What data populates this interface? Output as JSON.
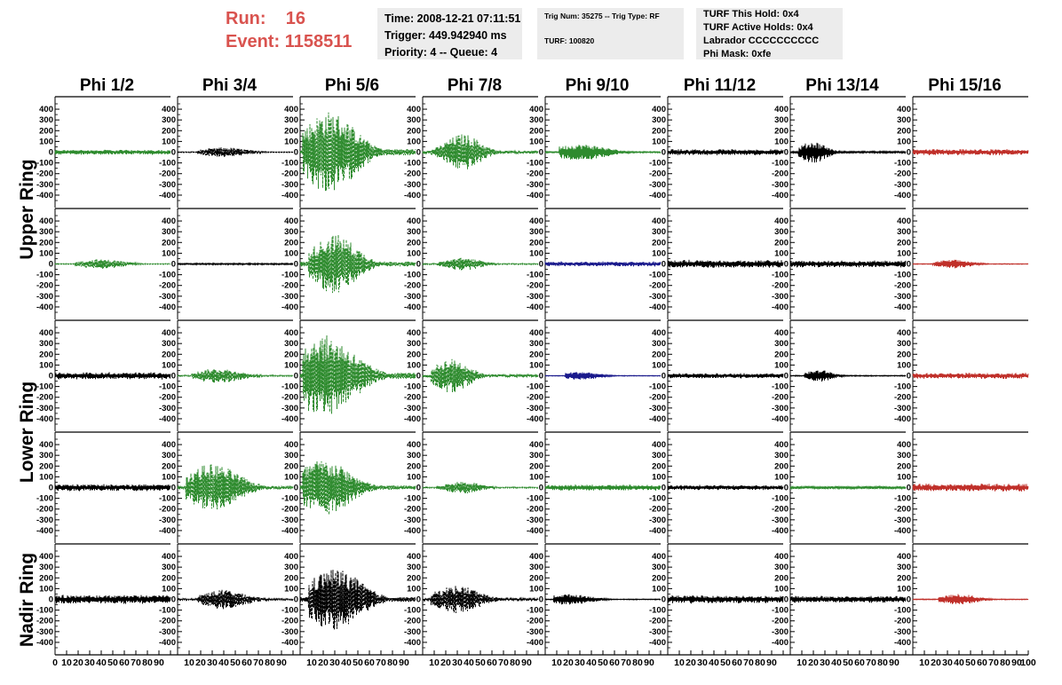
{
  "header": {
    "run_label": "Run:",
    "run_value": "16",
    "event_label": "Event:",
    "event_value": "1158511"
  },
  "info_time": {
    "time": "Time: 2008-12-21 07:11:51",
    "trigger": "Trigger: 449.942940 ms",
    "priority": "Priority: 4 -- Queue: 4"
  },
  "info_trig": {
    "trig": "Trig Num: 35275 -- Trig Type: RF",
    "turf": "TURF: 100820"
  },
  "info_turf": {
    "hold": "TURF This Hold: 0x4",
    "active": "TURF Active Holds: 0x4",
    "labrador": "Labrador CCCCCCCCCC",
    "phimask": "Phi Mask: 0xfe"
  },
  "columns": [
    "Phi 1/2",
    "Phi 3/4",
    "Phi 5/6",
    "Phi 7/8",
    "Phi 9/10",
    "Phi 11/12",
    "Phi 13/14",
    "Phi 15/16"
  ],
  "row_labels": [
    {
      "text": "Upper Ring"
    },
    {
      "text": "Lower Ring"
    },
    {
      "text": "Nadir Ring"
    }
  ],
  "colors": {
    "green": "#2e8b2e",
    "black": "#000000",
    "blue": "#1a1a8c",
    "red": "#c0302a"
  },
  "chart_data": {
    "type": "line",
    "y_ticks": [
      -400,
      -300,
      -200,
      -100,
      0,
      100,
      200,
      300,
      400
    ],
    "y_range": [
      -450,
      450
    ],
    "x_range": [
      0,
      100
    ],
    "x_tick_labels": [
      "0",
      "10",
      "20",
      "30",
      "40",
      "50",
      "60",
      "70",
      "80",
      "90",
      "100"
    ],
    "grid": false,
    "panels": [
      [
        {
          "color": "green",
          "style": "solid",
          "amp": 25,
          "env": [
            0,
            100,
            10
          ]
        },
        {
          "color": "black",
          "style": "dashed",
          "amp": 45,
          "env": [
            20,
            40,
            25
          ]
        },
        {
          "color": "green",
          "style": "dashed",
          "amp": 380,
          "env": [
            5,
            25,
            30
          ]
        },
        {
          "color": "green",
          "style": "dashed",
          "amp": 170,
          "env": [
            10,
            35,
            20
          ]
        },
        {
          "color": "green",
          "style": "solid",
          "amp": 75,
          "env": [
            15,
            30,
            30
          ]
        },
        {
          "color": "black",
          "style": "solid",
          "amp": 30,
          "env": [
            0,
            100,
            10
          ]
        },
        {
          "color": "black",
          "style": "solid",
          "amp": 100,
          "env": [
            10,
            20,
            15
          ]
        },
        {
          "color": "red",
          "style": "solid",
          "amp": 30,
          "env": [
            0,
            100,
            10
          ]
        }
      ],
      [
        {
          "color": "green",
          "style": "dashed",
          "amp": 45,
          "env": [
            20,
            40,
            25
          ]
        },
        {
          "color": "black",
          "style": "solid",
          "amp": 8,
          "env": [
            0,
            100,
            10
          ]
        },
        {
          "color": "green",
          "style": "dashed",
          "amp": 280,
          "env": [
            10,
            30,
            25
          ]
        },
        {
          "color": "green",
          "style": "dashed",
          "amp": 60,
          "env": [
            15,
            35,
            20
          ]
        },
        {
          "color": "blue",
          "style": "solid",
          "amp": 25,
          "env": [
            0,
            100,
            10
          ]
        },
        {
          "color": "black",
          "style": "solid",
          "amp": 40,
          "env": [
            0,
            100,
            10
          ]
        },
        {
          "color": "black",
          "style": "solid",
          "amp": 35,
          "env": [
            0,
            100,
            10
          ]
        },
        {
          "color": "red",
          "style": "solid",
          "amp": 40,
          "env": [
            20,
            35,
            20
          ]
        }
      ],
      [
        {
          "color": "black",
          "style": "solid",
          "amp": 35,
          "env": [
            0,
            100,
            10
          ]
        },
        {
          "color": "green",
          "style": "dashed",
          "amp": 70,
          "env": [
            15,
            35,
            25
          ]
        },
        {
          "color": "green",
          "style": "dashed",
          "amp": 380,
          "env": [
            5,
            20,
            35
          ]
        },
        {
          "color": "green",
          "style": "dashed",
          "amp": 160,
          "env": [
            10,
            25,
            20
          ]
        },
        {
          "color": "blue",
          "style": "solid",
          "amp": 40,
          "env": [
            20,
            30,
            20
          ]
        },
        {
          "color": "black",
          "style": "solid",
          "amp": 25,
          "env": [
            0,
            100,
            10
          ]
        },
        {
          "color": "black",
          "style": "solid",
          "amp": 55,
          "env": [
            15,
            25,
            15
          ]
        },
        {
          "color": "red",
          "style": "solid",
          "amp": 30,
          "env": [
            0,
            100,
            10
          ]
        }
      ],
      [
        {
          "color": "black",
          "style": "solid",
          "amp": 35,
          "env": [
            0,
            100,
            10
          ]
        },
        {
          "color": "green",
          "style": "dashed",
          "amp": 220,
          "env": [
            10,
            30,
            30
          ]
        },
        {
          "color": "green",
          "style": "dashed",
          "amp": 260,
          "env": [
            5,
            20,
            30
          ]
        },
        {
          "color": "green",
          "style": "dashed",
          "amp": 60,
          "env": [
            15,
            35,
            20
          ]
        },
        {
          "color": "green",
          "style": "solid",
          "amp": 30,
          "env": [
            0,
            100,
            10
          ]
        },
        {
          "color": "black",
          "style": "solid",
          "amp": 25,
          "env": [
            0,
            100,
            10
          ]
        },
        {
          "color": "green",
          "style": "solid",
          "amp": 15,
          "env": [
            0,
            100,
            10
          ]
        },
        {
          "color": "red",
          "style": "solid",
          "amp": 40,
          "env": [
            0,
            100,
            10
          ]
        }
      ],
      [
        {
          "color": "black",
          "style": "solid",
          "amp": 45,
          "env": [
            0,
            100,
            10
          ]
        },
        {
          "color": "black",
          "style": "dashed",
          "amp": 90,
          "env": [
            20,
            40,
            25
          ]
        },
        {
          "color": "black",
          "style": "dashed",
          "amp": 290,
          "env": [
            10,
            30,
            30
          ]
        },
        {
          "color": "black",
          "style": "dashed",
          "amp": 130,
          "env": [
            10,
            30,
            25
          ]
        },
        {
          "color": "black",
          "style": "solid",
          "amp": 50,
          "env": [
            10,
            20,
            25
          ]
        },
        {
          "color": "black",
          "style": "solid",
          "amp": 40,
          "env": [
            0,
            100,
            10
          ]
        },
        {
          "color": "black",
          "style": "solid",
          "amp": 35,
          "env": [
            0,
            100,
            10
          ]
        },
        {
          "color": "red",
          "style": "solid",
          "amp": 50,
          "env": [
            25,
            40,
            20
          ]
        }
      ]
    ]
  }
}
